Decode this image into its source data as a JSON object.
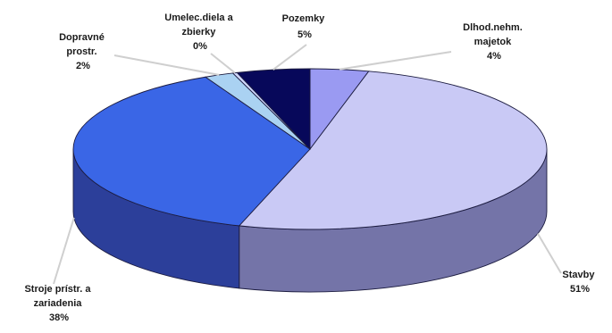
{
  "chart_data": {
    "type": "pie",
    "style": "3d",
    "title": "",
    "slices": [
      {
        "key": "dlhod",
        "label_lines": [
          "Dlhod.nehm.",
          "majetok"
        ],
        "pct_label": "4%",
        "value": 4,
        "top_color": "#9a9af2",
        "side_color": "#5a5aa6"
      },
      {
        "key": "stavby",
        "label_lines": [
          "Stavby"
        ],
        "pct_label": "51%",
        "value": 51,
        "top_color": "#c9c9f5",
        "side_color": "#7474a8"
      },
      {
        "key": "stroje",
        "label_lines": [
          "Stroje prístr. a",
          "zariadenia"
        ],
        "pct_label": "38%",
        "value": 38,
        "top_color": "#3a66e6",
        "side_color": "#2c3f9a"
      },
      {
        "key": "doprav",
        "label_lines": [
          "Dopravné",
          "prostr."
        ],
        "pct_label": "2%",
        "value": 2,
        "top_color": "#aad2f2",
        "side_color": "#6a8fb8"
      },
      {
        "key": "umelec",
        "label_lines": [
          "Umelec.diela a",
          "zbierky"
        ],
        "pct_label": "0%",
        "value": 0.3,
        "top_color": "#d0d8ff",
        "side_color": "#8090c0"
      },
      {
        "key": "pozemky",
        "label_lines": [
          "Pozemky"
        ],
        "pct_label": "5%",
        "value": 5,
        "top_color": "#07085a",
        "side_color": "#050540"
      }
    ]
  }
}
